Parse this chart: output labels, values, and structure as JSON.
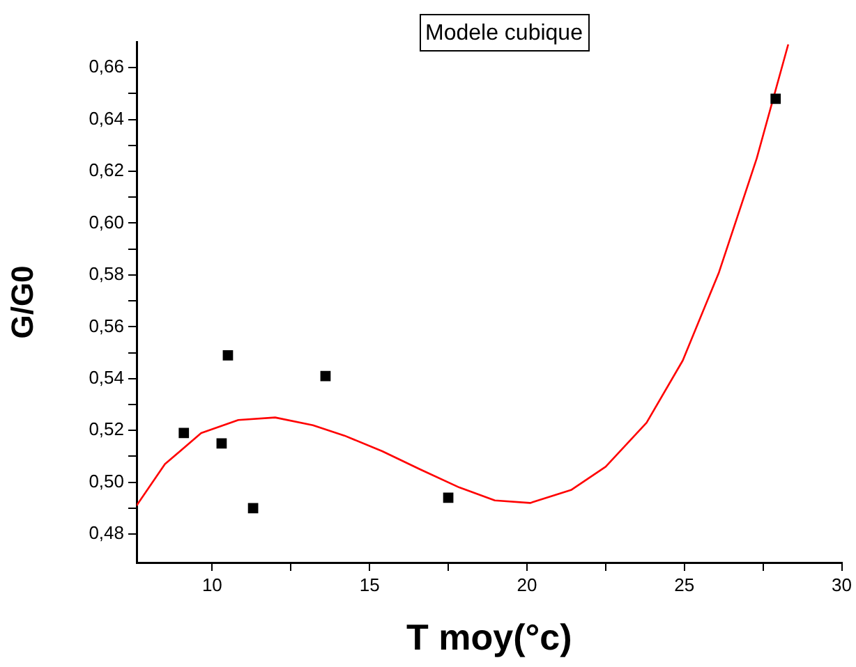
{
  "chart_data": {
    "type": "scatter",
    "xlabel": "T moy(°c)",
    "ylabel": "G/G0",
    "annotations": [
      "Modele cubique"
    ],
    "xlim": [
      7.6,
      30
    ],
    "xticks": [
      10,
      {
        "value": 12.5,
        "label": null
      },
      15,
      {
        "value": 17.5,
        "label": null
      },
      20,
      {
        "value": 22.5,
        "label": null
      },
      25,
      {
        "value": 27.5,
        "label": null
      },
      30
    ],
    "ylim": [
      0.469,
      0.67
    ],
    "yticks": [
      {
        "value": 0.48,
        "label": "0,48"
      },
      {
        "value": 0.49,
        "label": null
      },
      {
        "value": 0.5,
        "label": "0,50"
      },
      {
        "value": 0.51,
        "label": null
      },
      {
        "value": 0.52,
        "label": "0,52"
      },
      {
        "value": 0.53,
        "label": null
      },
      {
        "value": 0.54,
        "label": "0,54"
      },
      {
        "value": 0.55,
        "label": null
      },
      {
        "value": 0.56,
        "label": "0,56"
      },
      {
        "value": 0.57,
        "label": null
      },
      {
        "value": 0.58,
        "label": "0,58"
      },
      {
        "value": 0.59,
        "label": null
      },
      {
        "value": 0.6,
        "label": "0,60"
      },
      {
        "value": 0.61,
        "label": null
      },
      {
        "value": 0.62,
        "label": "0,62"
      },
      {
        "value": 0.63,
        "label": null
      },
      {
        "value": 0.64,
        "label": "0,64"
      },
      {
        "value": 0.65,
        "label": null
      },
      {
        "value": 0.66,
        "label": "0,66"
      }
    ],
    "grid": false,
    "legend": false,
    "series": [
      {
        "marker": "square",
        "color": "#000000",
        "x": [
          9.1,
          10.3,
          10.5,
          11.3,
          13.6,
          17.5,
          27.9
        ],
        "values": [
          0.519,
          0.515,
          0.549,
          0.49,
          0.541,
          0.494,
          0.648
        ]
      },
      {
        "type": "line",
        "marker": "none",
        "color": "#ff0000",
        "x": [
          7.6,
          8.5,
          9.65,
          10.83,
          12.0,
          13.2,
          14.2,
          15.4,
          16.6,
          17.85,
          18.98,
          20.1,
          21.4,
          22.5,
          23.8,
          24.95,
          26.1,
          27.3,
          28.3
        ],
        "values": [
          0.491,
          0.507,
          0.519,
          0.524,
          0.525,
          0.522,
          0.518,
          0.512,
          0.505,
          0.498,
          0.493,
          0.492,
          0.497,
          0.506,
          0.523,
          0.547,
          0.581,
          0.625,
          0.669
        ]
      }
    ]
  }
}
